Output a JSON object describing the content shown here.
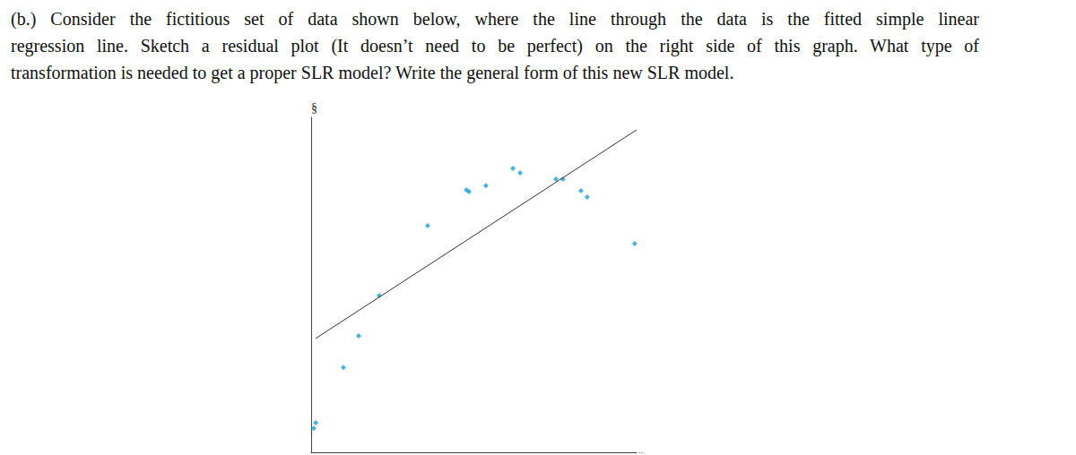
{
  "question": [
    "(b.) Consider the fictitious set of data shown below, where the line through the data is the fitted simple linear",
    "regression line. Sketch a residual plot (It doesn’t need to be perfect) on the right side of this graph. What type of",
    "transformation is needed to get a proper SLR model? Write the general form of this new SLR model."
  ],
  "chart_data": {
    "type": "scatter",
    "ylabel": "§",
    "xlabel": "..",
    "xlim": [
      0,
      10
    ],
    "ylim": [
      0,
      11
    ],
    "grid": false,
    "tick_labels": false,
    "series": [
      {
        "type": "scatter",
        "color": "#1a9fd6",
        "marker": "diamond",
        "x": [
          0.08,
          0.14,
          0.99,
          1.46,
          2.09,
          3.58,
          4.77,
          4.85,
          5.37,
          6.2,
          6.42,
          7.52,
          7.74,
          8.29,
          8.48,
          9.94
        ],
        "values": [
          0.79,
          0.97,
          2.79,
          3.82,
          5.15,
          7.44,
          8.62,
          8.56,
          8.76,
          9.32,
          9.18,
          8.97,
          8.97,
          8.59,
          8.38,
          6.85
        ]
      },
      {
        "type": "line",
        "color": "#333333",
        "line_style": "solid",
        "x": [
          0.14,
          10
        ],
        "values": [
          3.74,
          10.59
        ]
      }
    ]
  }
}
